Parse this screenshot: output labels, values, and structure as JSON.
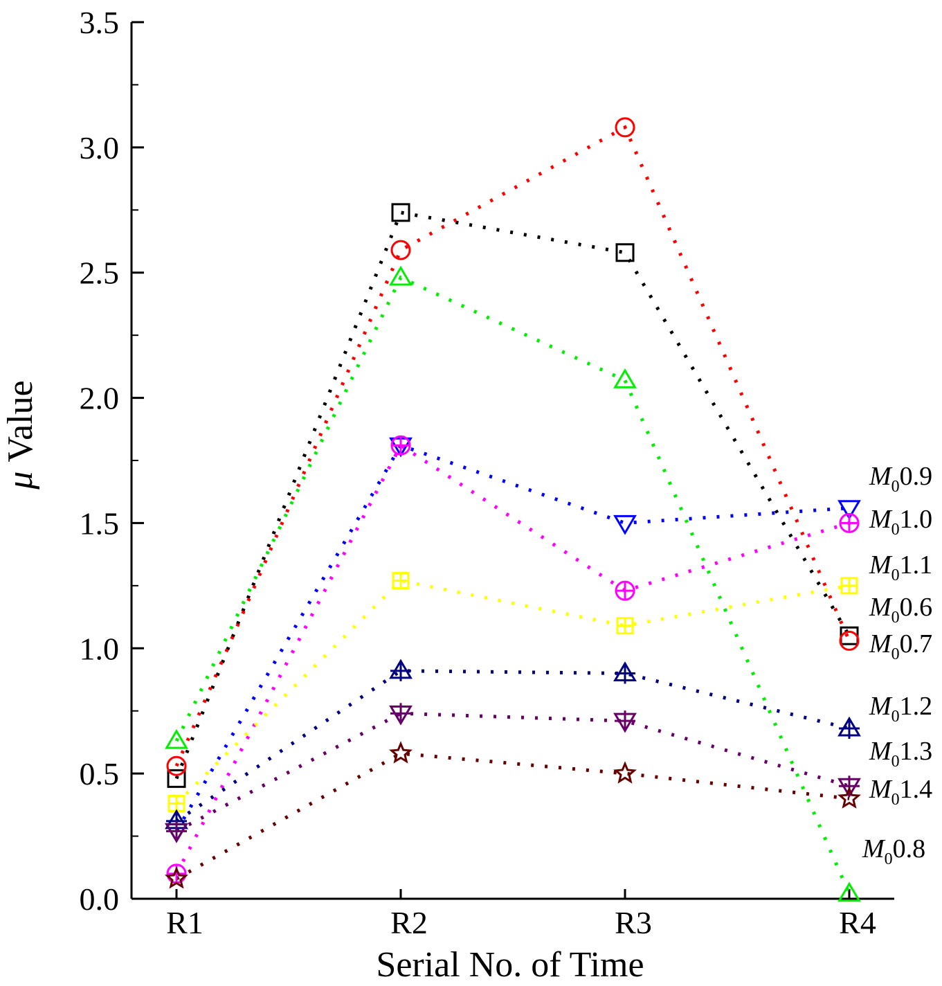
{
  "chart_data": {
    "type": "line",
    "title": "",
    "xlabel": "Serial No. of  Time",
    "ylabel_symbol": "μ",
    "ylabel_text": " Value",
    "categories": [
      "R1",
      "R2",
      "R3",
      "R4"
    ],
    "ylim": [
      0.0,
      3.5
    ],
    "yticks": [
      "0.0",
      "0.5",
      "1.0",
      "1.5",
      "2.0",
      "2.5",
      "3.0",
      "3.5"
    ],
    "grid": false,
    "legend": "labels at right end of each series",
    "series": [
      {
        "label_main": "M",
        "label_sub": "0",
        "label_value": "0.6",
        "marker": "square",
        "color": "#000000",
        "values": [
          0.48,
          2.74,
          2.58,
          1.05
        ]
      },
      {
        "label_main": "M",
        "label_sub": "0",
        "label_value": "0.7",
        "marker": "circle",
        "color": "#ff0000",
        "values": [
          0.53,
          2.59,
          3.08,
          1.03
        ]
      },
      {
        "label_main": "M",
        "label_sub": "0",
        "label_value": "0.8",
        "marker": "triangle-up",
        "color": "#00ee00",
        "values": [
          0.63,
          2.48,
          2.07,
          0.02
        ]
      },
      {
        "label_main": "M",
        "label_sub": "0",
        "label_value": "0.9",
        "marker": "triangle-down",
        "color": "#0000ff",
        "values": [
          0.27,
          1.81,
          1.5,
          1.56
        ]
      },
      {
        "label_main": "M",
        "label_sub": "0",
        "label_value": "1.0",
        "marker": "circle-plus",
        "color": "#ff00ff",
        "values": [
          0.1,
          1.81,
          1.23,
          1.5
        ]
      },
      {
        "label_main": "M",
        "label_sub": "0",
        "label_value": "1.1",
        "marker": "square-plus",
        "color": "#ffff00",
        "values": [
          0.38,
          1.27,
          1.09,
          1.25
        ]
      },
      {
        "label_main": "M",
        "label_sub": "0",
        "label_value": "1.2",
        "marker": "triangle-up-plus",
        "color": "#000080",
        "values": [
          0.31,
          0.91,
          0.9,
          0.68
        ]
      },
      {
        "label_main": "M",
        "label_sub": "0",
        "label_value": "1.3",
        "marker": "triangle-down-plus",
        "color": "#660066",
        "values": [
          0.27,
          0.74,
          0.71,
          0.45
        ]
      },
      {
        "label_main": "M",
        "label_sub": "0",
        "label_value": "1.4",
        "marker": "star",
        "color": "#660000",
        "values": [
          0.08,
          0.58,
          0.5,
          0.4
        ]
      }
    ]
  }
}
